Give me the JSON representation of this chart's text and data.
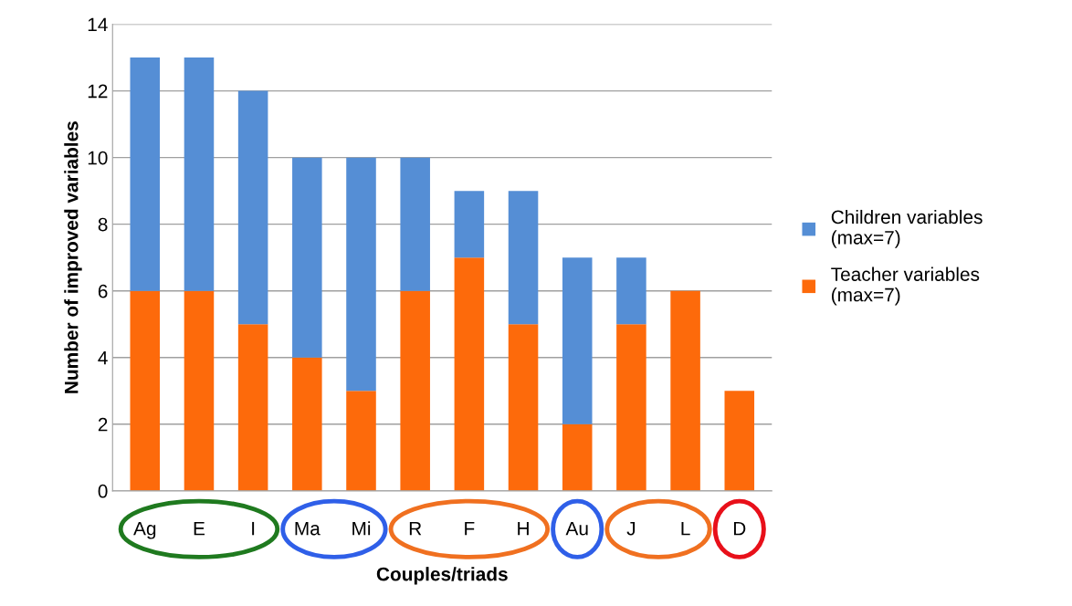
{
  "chart_data": {
    "type": "bar",
    "stacked": true,
    "xlabel": "Couples/triads",
    "ylabel": "Number of improved variables",
    "categories": [
      "Ag",
      "E",
      "I",
      "Ma",
      "Mi",
      "R",
      "F",
      "H",
      "Au",
      "J",
      "L",
      "D"
    ],
    "series": [
      {
        "name": "Teacher variables\n(max=7)",
        "color": "#fd6a0b",
        "values": [
          6,
          6,
          5,
          4,
          3,
          6,
          7,
          5,
          2,
          5,
          6,
          3
        ]
      },
      {
        "name": "Children variables\n(max=7)",
        "color": "#558ed5",
        "values": [
          7,
          7,
          7,
          6,
          7,
          4,
          2,
          4,
          5,
          2,
          0,
          0
        ]
      }
    ],
    "ylim": [
      0,
      14
    ],
    "yticks": [
      0,
      2,
      4,
      6,
      8,
      10,
      12,
      14
    ],
    "grid": "y",
    "legend": "right"
  }
}
